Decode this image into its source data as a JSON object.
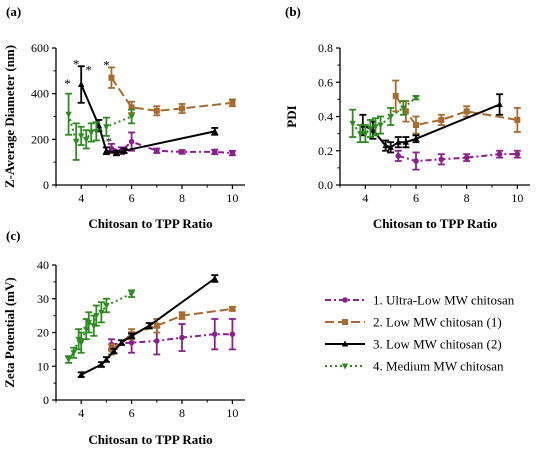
{
  "colors": {
    "s1": "#8b1f8f",
    "s2": "#a86b2f",
    "s3": "#000000",
    "s4": "#2e8b1f"
  },
  "legend": [
    {
      "series": "s1",
      "label": "1. Ultra-Low MW chitosan"
    },
    {
      "series": "s2",
      "label": "2. Low MW chitosan (1)"
    },
    {
      "series": "s3",
      "label": "3. Low MW chitosan (2)"
    },
    {
      "series": "s4",
      "label": "4. Medium MW chitosan"
    }
  ],
  "chart_data": [
    {
      "panel": "(a)",
      "type": "line",
      "xlabel": "Chitosan to TPP Ratio",
      "ylabel": "Z-Average Diameter (nm)",
      "xlim": [
        3,
        10.5
      ],
      "ylim": [
        0,
        600
      ],
      "xticks": [
        4,
        6,
        8,
        10
      ],
      "yticks": [
        0,
        200,
        400,
        600
      ],
      "annotations": [
        {
          "text": "*",
          "x": 3.45,
          "y": 425
        },
        {
          "text": "*",
          "x": 3.8,
          "y": 510
        },
        {
          "text": "*",
          "x": 4.3,
          "y": 485
        },
        {
          "text": "*",
          "x": 5.0,
          "y": 505
        },
        {
          "text": "*",
          "x": 5.1,
          "y": 170
        }
      ],
      "series": [
        {
          "key": "s1",
          "x": [
            5.2,
            5.6,
            6.0,
            7.0,
            8.0,
            9.3,
            10.0
          ],
          "y": [
            160,
            150,
            190,
            150,
            145,
            145,
            140
          ],
          "err": [
            20,
            15,
            40,
            10,
            8,
            10,
            10
          ]
        },
        {
          "key": "s2",
          "x": [
            5.2,
            6.0,
            7.0,
            8.0,
            10.0
          ],
          "y": [
            470,
            340,
            325,
            335,
            360
          ],
          "err": [
            45,
            25,
            20,
            20,
            15
          ]
        },
        {
          "key": "s3",
          "x": [
            4.0,
            4.7,
            5.0,
            5.4,
            5.7,
            9.3
          ],
          "y": [
            440,
            260,
            150,
            140,
            150,
            235
          ],
          "err": [
            80,
            25,
            15,
            10,
            10,
            15
          ]
        },
        {
          "key": "s4",
          "x": [
            3.5,
            3.8,
            4.0,
            4.2,
            4.4,
            4.6,
            5.0,
            6.0
          ],
          "y": [
            310,
            190,
            215,
            200,
            230,
            235,
            255,
            300
          ],
          "err": [
            90,
            80,
            40,
            40,
            40,
            40,
            40,
            30
          ]
        }
      ]
    },
    {
      "panel": "(b)",
      "type": "line",
      "xlabel": "Chitosan to TPP Ratio",
      "ylabel": "PDI",
      "xlim": [
        3,
        10.5
      ],
      "ylim": [
        0,
        0.8
      ],
      "xticks": [
        4,
        6,
        8,
        10
      ],
      "yticks": [
        0.0,
        0.2,
        0.4,
        0.6,
        0.8
      ],
      "series": [
        {
          "key": "s1",
          "x": [
            5.3,
            6.0,
            7.0,
            8.0,
            9.3,
            10.0
          ],
          "y": [
            0.17,
            0.14,
            0.15,
            0.16,
            0.18,
            0.18
          ],
          "err": [
            0.03,
            0.05,
            0.03,
            0.02,
            0.02,
            0.02
          ]
        },
        {
          "key": "s2",
          "x": [
            5.2,
            5.6,
            6.0,
            7.0,
            8.0,
            10.0
          ],
          "y": [
            0.52,
            0.43,
            0.35,
            0.38,
            0.43,
            0.38
          ],
          "err": [
            0.09,
            0.06,
            0.05,
            0.03,
            0.03,
            0.07
          ]
        },
        {
          "key": "s3",
          "x": [
            3.9,
            4.3,
            4.8,
            5.0,
            5.3,
            5.6,
            6.0,
            9.3
          ],
          "y": [
            0.35,
            0.32,
            0.23,
            0.22,
            0.25,
            0.25,
            0.27,
            0.47
          ],
          "err": [
            0.06,
            0.05,
            0.03,
            0.03,
            0.03,
            0.03,
            0.02,
            0.06
          ]
        },
        {
          "key": "s4",
          "x": [
            3.5,
            3.8,
            4.0,
            4.2,
            4.4,
            4.6,
            5.0,
            5.5,
            6.0
          ],
          "y": [
            0.36,
            0.3,
            0.3,
            0.33,
            0.34,
            0.35,
            0.4,
            0.45,
            0.51
          ],
          "err": [
            0.08,
            0.05,
            0.05,
            0.05,
            0.05,
            0.05,
            0.05,
            0.04,
            0.01
          ]
        }
      ]
    },
    {
      "panel": "(c)",
      "type": "line",
      "xlabel": "Chitosan to TPP Ratio",
      "ylabel": "Zeta Potential (mV)",
      "xlim": [
        3,
        10.5
      ],
      "ylim": [
        0,
        40
      ],
      "xticks": [
        4,
        6,
        8,
        10
      ],
      "yticks": [
        0,
        10,
        20,
        30,
        40
      ],
      "series": [
        {
          "key": "s1",
          "x": [
            5.2,
            6.0,
            7.0,
            8.0,
            9.3,
            10.0
          ],
          "y": [
            16.5,
            17,
            17.5,
            18.5,
            19.5,
            19.5
          ],
          "err": [
            1.5,
            3,
            4,
            4,
            4.5,
            4.5
          ]
        },
        {
          "key": "s2",
          "x": [
            5.2,
            6.0,
            7.0,
            8.0,
            10.0
          ],
          "y": [
            15,
            19.5,
            22,
            25,
            27
          ],
          "err": [
            1.5,
            1.5,
            2,
            1,
            0.5
          ]
        },
        {
          "key": "s3",
          "x": [
            4.0,
            4.8,
            5.0,
            5.3,
            5.6,
            6.0,
            6.7,
            9.3
          ],
          "y": [
            7.5,
            10.5,
            12,
            14.5,
            17,
            19,
            22,
            36
          ],
          "err": [
            0.7,
            0.7,
            0.7,
            0.7,
            0.7,
            0.7,
            0.8,
            1
          ]
        },
        {
          "key": "s4",
          "x": [
            3.5,
            3.7,
            3.9,
            4.0,
            4.2,
            4.3,
            4.5,
            4.6,
            4.8,
            5.0,
            6.0
          ],
          "y": [
            12,
            14,
            18,
            17,
            21,
            23,
            22,
            25,
            26,
            28,
            31.5
          ],
          "err": [
            1,
            1.5,
            3,
            3,
            3,
            3,
            3,
            3,
            3,
            2,
            1
          ]
        }
      ]
    }
  ]
}
